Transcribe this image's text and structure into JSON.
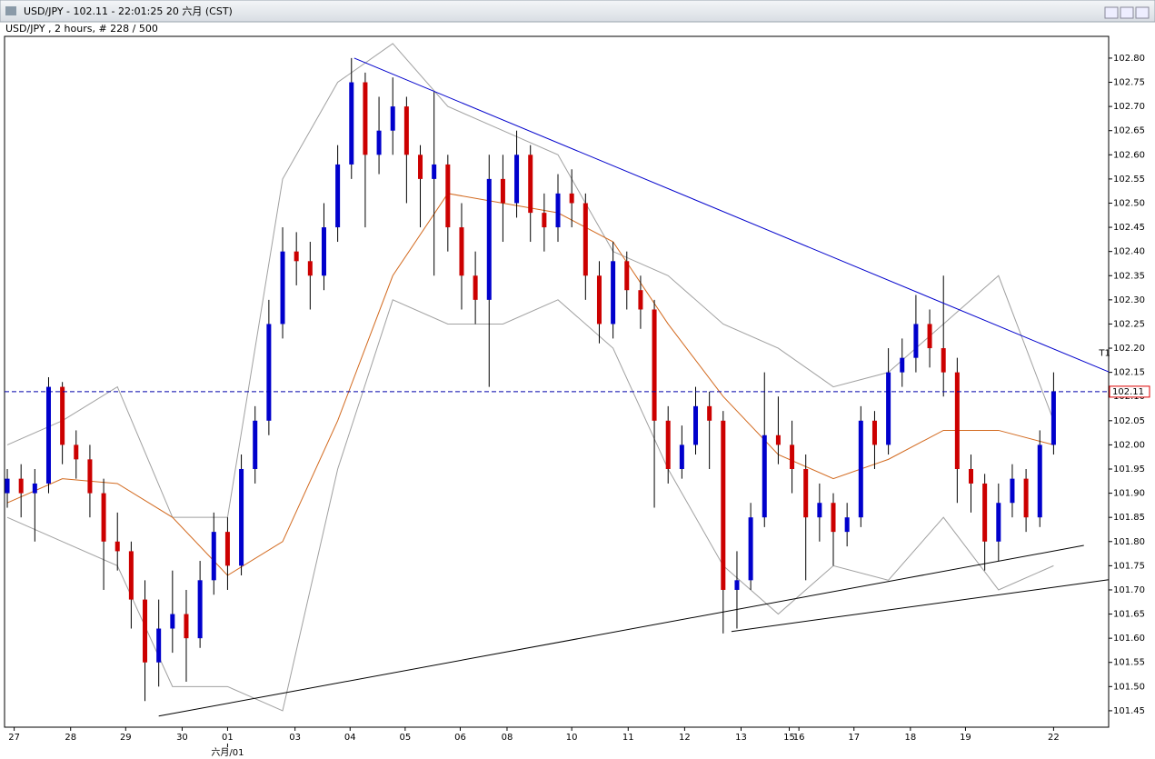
{
  "window_title": "USD/JPY - 102.11 - 22:01:25  20 六月 (CST)",
  "chart_data": {
    "type": "candlestick",
    "title": "USD/JPY , 2 hours, # 228 / 500",
    "up_color": "#0000cc",
    "down_color": "#cc0000",
    "xlim": [
      -0.2,
      80
    ],
    "ylim": [
      101.416,
      102.845
    ],
    "xticks": [
      {
        "value": 0.5,
        "label": "27"
      },
      {
        "value": 4.6,
        "label": "28"
      },
      {
        "value": 8.6,
        "label": "29"
      },
      {
        "value": 12.7,
        "label": "30"
      },
      {
        "value": 16,
        "label": "01"
      },
      {
        "value": 20.9,
        "label": "03"
      },
      {
        "value": 24.9,
        "label": "04"
      },
      {
        "value": 28.9,
        "label": "05"
      },
      {
        "value": 32.9,
        "label": "06"
      },
      {
        "value": 36.3,
        "label": "08"
      },
      {
        "value": 41,
        "label": "10"
      },
      {
        "value": 45.1,
        "label": "11"
      },
      {
        "value": 49.2,
        "label": "12"
      },
      {
        "value": 53.3,
        "label": "13"
      },
      {
        "value": 56.8,
        "label": "15"
      },
      {
        "value": 57.5,
        "label": "16"
      },
      {
        "value": 61.5,
        "label": "17"
      },
      {
        "value": 65.6,
        "label": "18"
      },
      {
        "value": 69.6,
        "label": "19"
      },
      {
        "value": 76,
        "label": "22"
      }
    ],
    "x_sublabel": {
      "value": 16,
      "label": "六月/01"
    },
    "yticks": [
      {
        "value": 102.8,
        "label": "102.80"
      },
      102.75,
      {
        "value": 102.7,
        "label": "102.70"
      },
      102.65,
      {
        "value": 102.6,
        "label": "102.60"
      },
      102.55,
      {
        "value": 102.5,
        "label": "102.50"
      },
      102.45,
      {
        "value": 102.4,
        "label": "102.40"
      },
      102.35,
      {
        "value": 102.3,
        "label": "102.30"
      },
      102.25,
      {
        "value": 102.2,
        "label": "102.20"
      },
      102.15,
      {
        "value": 102.1,
        "label": "102.10"
      },
      102.05,
      {
        "value": 102.0,
        "label": "102.00"
      },
      101.95,
      {
        "value": 101.9,
        "label": "101.90"
      },
      101.85,
      {
        "value": 101.8,
        "label": "101.80"
      },
      101.75,
      {
        "value": 101.7,
        "label": "101.70"
      },
      101.65,
      {
        "value": 101.6,
        "label": "101.60"
      },
      101.55,
      {
        "value": 101.5,
        "label": "101.50"
      },
      101.45
    ],
    "current": 102.11,
    "current_color": "#0000aa",
    "ohlc": [
      [
        101.9,
        101.95,
        101.87,
        101.93
      ],
      [
        101.93,
        101.96,
        101.85,
        101.9
      ],
      [
        101.9,
        101.95,
        101.8,
        101.92
      ],
      [
        101.92,
        102.14,
        101.9,
        102.12
      ],
      [
        102.12,
        102.13,
        101.96,
        102.0
      ],
      [
        102.0,
        102.03,
        101.93,
        101.97
      ],
      [
        101.97,
        102.0,
        101.85,
        101.9
      ],
      [
        101.9,
        101.93,
        101.7,
        101.8
      ],
      [
        101.8,
        101.86,
        101.74,
        101.78
      ],
      [
        101.78,
        101.8,
        101.62,
        101.68
      ],
      [
        101.68,
        101.72,
        101.47,
        101.55
      ],
      [
        101.55,
        101.68,
        101.5,
        101.62
      ],
      [
        101.62,
        101.74,
        101.57,
        101.65
      ],
      [
        101.65,
        101.7,
        101.51,
        101.6
      ],
      [
        101.6,
        101.76,
        101.58,
        101.72
      ],
      [
        101.72,
        101.86,
        101.69,
        101.82
      ],
      [
        101.82,
        101.85,
        101.7,
        101.75
      ],
      [
        101.75,
        101.98,
        101.73,
        101.95
      ],
      [
        101.95,
        102.08,
        101.92,
        102.05
      ],
      [
        102.05,
        102.3,
        102.02,
        102.25
      ],
      [
        102.25,
        102.45,
        102.22,
        102.4
      ],
      [
        102.4,
        102.44,
        102.33,
        102.38
      ],
      [
        102.38,
        102.42,
        102.28,
        102.35
      ],
      [
        102.35,
        102.5,
        102.32,
        102.45
      ],
      [
        102.45,
        102.62,
        102.42,
        102.58
      ],
      [
        102.58,
        102.8,
        102.55,
        102.75
      ],
      [
        102.75,
        102.77,
        102.45,
        102.6
      ],
      [
        102.6,
        102.72,
        102.56,
        102.65
      ],
      [
        102.65,
        102.76,
        102.6,
        102.7
      ],
      [
        102.7,
        102.72,
        102.5,
        102.6
      ],
      [
        102.6,
        102.62,
        102.45,
        102.55
      ],
      [
        102.55,
        102.73,
        102.35,
        102.58
      ],
      [
        102.58,
        102.6,
        102.4,
        102.45
      ],
      [
        102.45,
        102.5,
        102.28,
        102.35
      ],
      [
        102.35,
        102.4,
        102.25,
        102.3
      ],
      [
        102.3,
        102.6,
        102.12,
        102.55
      ],
      [
        102.55,
        102.6,
        102.42,
        102.5
      ],
      [
        102.5,
        102.65,
        102.47,
        102.6
      ],
      [
        102.6,
        102.62,
        102.42,
        102.48
      ],
      [
        102.48,
        102.52,
        102.4,
        102.45
      ],
      [
        102.45,
        102.56,
        102.42,
        102.52
      ],
      [
        102.52,
        102.57,
        102.45,
        102.5
      ],
      [
        102.5,
        102.52,
        102.3,
        102.35
      ],
      [
        102.35,
        102.38,
        102.21,
        102.25
      ],
      [
        102.25,
        102.42,
        102.22,
        102.38
      ],
      [
        102.38,
        102.4,
        102.28,
        102.32
      ],
      [
        102.32,
        102.35,
        102.24,
        102.28
      ],
      [
        102.28,
        102.3,
        101.87,
        102.05
      ],
      [
        102.05,
        102.08,
        101.92,
        101.95
      ],
      [
        101.95,
        102.04,
        101.93,
        102.0
      ],
      [
        102.0,
        102.12,
        101.98,
        102.08
      ],
      [
        102.08,
        102.11,
        101.95,
        102.05
      ],
      [
        102.05,
        102.07,
        101.61,
        101.7
      ],
      [
        101.7,
        101.78,
        101.62,
        101.72
      ],
      [
        101.72,
        101.88,
        101.7,
        101.85
      ],
      [
        101.85,
        102.15,
        101.83,
        102.02
      ],
      [
        102.02,
        102.1,
        101.96,
        102.0
      ],
      [
        102.0,
        102.05,
        101.9,
        101.95
      ],
      [
        101.95,
        101.98,
        101.72,
        101.85
      ],
      [
        101.85,
        101.92,
        101.8,
        101.88
      ],
      [
        101.88,
        101.9,
        101.75,
        101.82
      ],
      [
        101.82,
        101.88,
        101.79,
        101.85
      ],
      [
        101.85,
        102.08,
        101.83,
        102.05
      ],
      [
        102.05,
        102.07,
        101.95,
        102.0
      ],
      [
        102.0,
        102.2,
        101.98,
        102.15
      ],
      [
        102.15,
        102.22,
        102.12,
        102.18
      ],
      [
        102.18,
        102.31,
        102.15,
        102.25
      ],
      [
        102.25,
        102.28,
        102.16,
        102.2
      ],
      [
        102.2,
        102.35,
        102.1,
        102.15
      ],
      [
        102.15,
        102.18,
        101.88,
        101.95
      ],
      [
        101.95,
        101.98,
        101.86,
        101.92
      ],
      [
        101.92,
        101.94,
        101.74,
        101.8
      ],
      [
        101.8,
        101.92,
        101.76,
        101.88
      ],
      [
        101.88,
        101.96,
        101.85,
        101.93
      ],
      [
        101.93,
        101.95,
        101.82,
        101.85
      ],
      [
        101.85,
        102.03,
        101.83,
        102.0
      ],
      [
        102.0,
        102.15,
        101.98,
        102.11
      ]
    ],
    "overlays": [
      {
        "color": "#a0a0a0",
        "x": [
          0,
          4,
          8,
          12,
          16,
          20,
          24,
          28,
          32,
          36,
          40,
          44,
          48,
          52,
          56,
          60,
          64,
          68,
          72,
          76
        ],
        "values": [
          102.0,
          102.05,
          102.12,
          101.85,
          101.85,
          102.55,
          102.75,
          102.83,
          102.7,
          102.65,
          102.6,
          102.4,
          102.35,
          102.25,
          102.2,
          102.12,
          102.15,
          102.25,
          102.35,
          102.05
        ]
      },
      {
        "color": "#a0a0a0",
        "x": [
          0,
          4,
          8,
          12,
          16,
          20,
          24,
          28,
          32,
          36,
          40,
          44,
          48,
          52,
          56,
          60,
          64,
          68,
          72,
          76
        ],
        "values": [
          101.85,
          101.8,
          101.75,
          101.5,
          101.5,
          101.45,
          101.95,
          102.3,
          102.25,
          102.25,
          102.3,
          102.2,
          101.95,
          101.75,
          101.65,
          101.75,
          101.72,
          101.85,
          101.7,
          101.75
        ]
      },
      {
        "color": "#d2691e",
        "x": [
          0,
          4,
          8,
          12,
          16,
          20,
          24,
          28,
          32,
          36,
          40,
          44,
          48,
          52,
          56,
          60,
          64,
          68,
          72,
          76
        ],
        "values": [
          101.88,
          101.93,
          101.92,
          101.85,
          101.73,
          101.8,
          102.05,
          102.35,
          102.52,
          102.5,
          102.48,
          102.42,
          102.25,
          102.1,
          101.98,
          101.93,
          101.97,
          102.03,
          102.03,
          102.0
        ]
      }
    ],
    "trendlines": [
      {
        "color": "#0000cc",
        "x": [
          25.2,
          80
        ],
        "values": [
          102.8,
          102.151
        ]
      },
      {
        "color": "#000000",
        "x": [
          11,
          78.2
        ],
        "values": [
          101.439,
          101.792
        ]
      },
      {
        "color": "#000000",
        "x": [
          52.6,
          80
        ],
        "values": [
          101.614,
          101.721
        ]
      }
    ],
    "annotations": [
      {
        "text": "T1",
        "x": 79.3,
        "y": 102.19
      }
    ]
  }
}
